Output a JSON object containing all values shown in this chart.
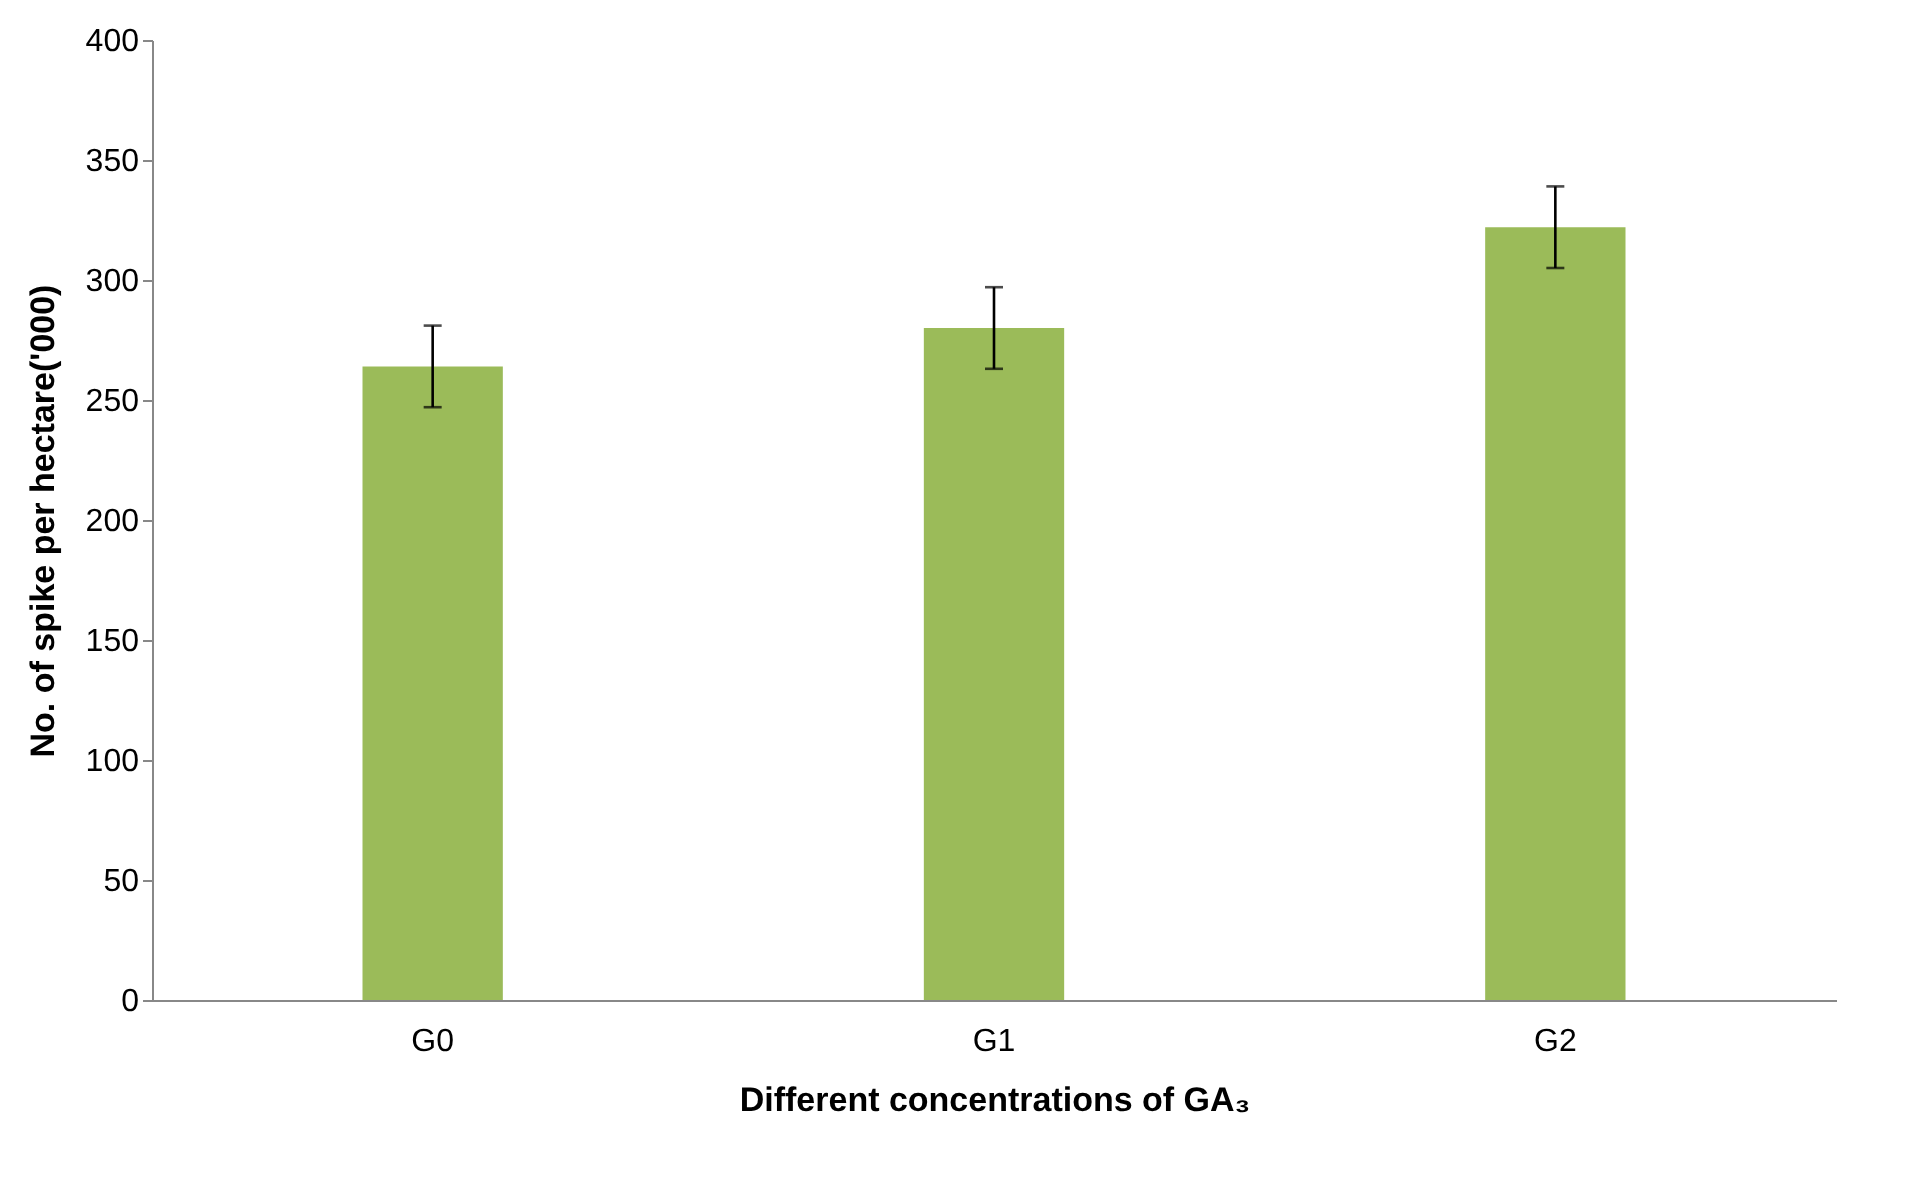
{
  "chart_data": {
    "type": "bar",
    "xlabel": "Different concentrations of GA₃",
    "ylabel": "No. of spike per hectare('000)",
    "categories": [
      "G0",
      "G1",
      "G2"
    ],
    "values": [
      264,
      280,
      322
    ],
    "errors": [
      17,
      17,
      17
    ],
    "color": "#9bbb59",
    "ylim": [
      0,
      400
    ],
    "yticks": [
      0,
      50,
      100,
      150,
      200,
      250,
      300,
      350,
      400
    ],
    "grid": false
  }
}
